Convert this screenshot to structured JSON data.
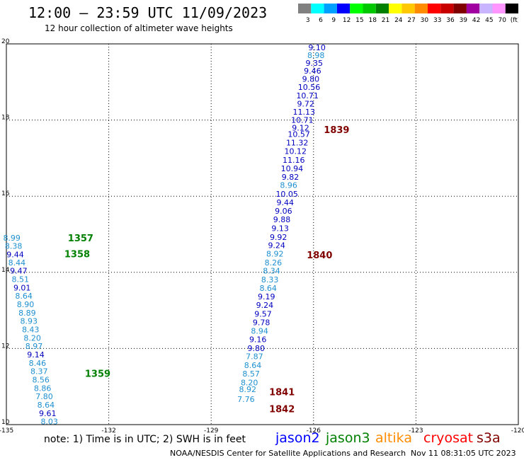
{
  "header": {
    "title": "12:00 – 23:59 UTC 11/09/2023",
    "subtitle": "12 hour collection of altimeter wave heights"
  },
  "colorbar": {
    "labels": [
      "3",
      "6",
      "9",
      "12",
      "15",
      "18",
      "21",
      "24",
      "27",
      "30",
      "33",
      "36",
      "39",
      "42",
      "45",
      "70",
      "(ft)"
    ],
    "colors": [
      "#808080",
      "#00ffff",
      "#00a0ff",
      "#0000ff",
      "#00ff00",
      "#00c800",
      "#008000",
      "#ffff00",
      "#ffc800",
      "#ff8c00",
      "#ff0000",
      "#c80000",
      "#800000",
      "#a000a0",
      "#c8b4ff",
      "#ff96ff",
      "#000000"
    ]
  },
  "colors": {
    "light_blue": "#1e90d0",
    "dark_blue": "#0000c0",
    "green": "#008000",
    "dark_red": "#800000",
    "jason2": "#0000ff",
    "jason3": "#008000",
    "altika": "#ff8c00",
    "cryosat": "#ff0000",
    "s3a": "#800000"
  },
  "chart_data": {
    "type": "scatter",
    "x_ticks": [
      "-135",
      "-132",
      "-129",
      "-126",
      "-123",
      "-120"
    ],
    "y_ticks": [
      "20",
      "18",
      "16",
      "14",
      "12",
      "10"
    ],
    "xlim": [
      -135,
      -120
    ],
    "ylim": [
      10,
      20
    ],
    "grid": true,
    "points": [
      {
        "lon": -125.9,
        "lat": 19.91,
        "v": "9.10",
        "c": "dark_blue"
      },
      {
        "lon": -125.93,
        "lat": 19.7,
        "v": "8.98",
        "c": "light_blue"
      },
      {
        "lon": -125.98,
        "lat": 19.5,
        "v": "9.35",
        "c": "dark_blue"
      },
      {
        "lon": -126.03,
        "lat": 19.29,
        "v": "9.46",
        "c": "dark_blue"
      },
      {
        "lon": -126.08,
        "lat": 19.08,
        "v": "9.80",
        "c": "dark_blue"
      },
      {
        "lon": -126.13,
        "lat": 18.87,
        "v": "10.56",
        "c": "dark_blue"
      },
      {
        "lon": -126.18,
        "lat": 18.64,
        "v": "10.71",
        "c": "dark_blue"
      },
      {
        "lon": -126.23,
        "lat": 18.43,
        "v": "9.72",
        "c": "dark_blue"
      },
      {
        "lon": -126.28,
        "lat": 18.22,
        "v": "11.13",
        "c": "dark_blue"
      },
      {
        "lon": -126.33,
        "lat": 18.0,
        "v": "10.71",
        "c": "dark_blue"
      },
      {
        "lon": -126.38,
        "lat": 17.8,
        "v": "9.12",
        "c": "dark_blue"
      },
      {
        "lon": -126.43,
        "lat": 17.63,
        "v": "10.57",
        "c": "dark_blue"
      },
      {
        "lon": -126.48,
        "lat": 17.41,
        "v": "11.32",
        "c": "dark_blue"
      },
      {
        "lon": -126.53,
        "lat": 17.18,
        "v": "10.12",
        "c": "dark_blue"
      },
      {
        "lon": -126.58,
        "lat": 16.95,
        "v": "11.16",
        "c": "dark_blue"
      },
      {
        "lon": -126.63,
        "lat": 16.73,
        "v": "10.94",
        "c": "dark_blue"
      },
      {
        "lon": -126.68,
        "lat": 16.51,
        "v": "9.82",
        "c": "dark_blue"
      },
      {
        "lon": -126.73,
        "lat": 16.29,
        "v": "8.96",
        "c": "light_blue"
      },
      {
        "lon": -126.78,
        "lat": 16.06,
        "v": "10.05",
        "c": "dark_blue"
      },
      {
        "lon": -126.83,
        "lat": 15.84,
        "v": "9.44",
        "c": "dark_blue"
      },
      {
        "lon": -126.88,
        "lat": 15.61,
        "v": "9.06",
        "c": "dark_blue"
      },
      {
        "lon": -126.93,
        "lat": 15.39,
        "v": "9.88",
        "c": "dark_blue"
      },
      {
        "lon": -126.98,
        "lat": 15.16,
        "v": "9.13",
        "c": "dark_blue"
      },
      {
        "lon": -127.03,
        "lat": 14.93,
        "v": "9.92",
        "c": "dark_blue"
      },
      {
        "lon": -127.08,
        "lat": 14.71,
        "v": "9.24",
        "c": "dark_blue"
      },
      {
        "lon": -127.13,
        "lat": 14.49,
        "v": "8.92",
        "c": "light_blue"
      },
      {
        "lon": -127.18,
        "lat": 14.26,
        "v": "8.26",
        "c": "light_blue"
      },
      {
        "lon": -127.23,
        "lat": 14.04,
        "v": "8.34",
        "c": "light_blue"
      },
      {
        "lon": -127.28,
        "lat": 13.81,
        "v": "8.33",
        "c": "light_blue"
      },
      {
        "lon": -127.33,
        "lat": 13.59,
        "v": "8.64",
        "c": "light_blue"
      },
      {
        "lon": -127.38,
        "lat": 13.36,
        "v": "9.19",
        "c": "dark_blue"
      },
      {
        "lon": -127.43,
        "lat": 13.14,
        "v": "9.24",
        "c": "dark_blue"
      },
      {
        "lon": -127.48,
        "lat": 12.91,
        "v": "9.57",
        "c": "dark_blue"
      },
      {
        "lon": -127.53,
        "lat": 12.69,
        "v": "9.78",
        "c": "dark_blue"
      },
      {
        "lon": -127.58,
        "lat": 12.46,
        "v": "8.94",
        "c": "light_blue"
      },
      {
        "lon": -127.63,
        "lat": 12.24,
        "v": "9.16",
        "c": "dark_blue"
      },
      {
        "lon": -127.68,
        "lat": 12.01,
        "v": "9.80",
        "c": "dark_blue"
      },
      {
        "lon": -127.73,
        "lat": 11.79,
        "v": "7.87",
        "c": "light_blue"
      },
      {
        "lon": -127.78,
        "lat": 11.56,
        "v": "8.64",
        "c": "light_blue"
      },
      {
        "lon": -127.83,
        "lat": 11.34,
        "v": "8.57",
        "c": "light_blue"
      },
      {
        "lon": -127.88,
        "lat": 11.11,
        "v": "8.20",
        "c": "light_blue"
      },
      {
        "lon": -127.93,
        "lat": 10.93,
        "v": "8.92",
        "c": "light_blue"
      },
      {
        "lon": -127.98,
        "lat": 10.67,
        "v": "7.76",
        "c": "light_blue"
      },
      {
        "lon": -134.84,
        "lat": 14.91,
        "v": "8.99",
        "c": "light_blue"
      },
      {
        "lon": -134.79,
        "lat": 14.69,
        "v": "8.38",
        "c": "light_blue"
      },
      {
        "lon": -134.74,
        "lat": 14.47,
        "v": "9.44",
        "c": "dark_blue"
      },
      {
        "lon": -134.69,
        "lat": 14.26,
        "v": "8.44",
        "c": "light_blue"
      },
      {
        "lon": -134.64,
        "lat": 14.04,
        "v": "9.47",
        "c": "dark_blue"
      },
      {
        "lon": -134.59,
        "lat": 13.82,
        "v": "8.51",
        "c": "light_blue"
      },
      {
        "lon": -134.54,
        "lat": 13.6,
        "v": "9.01",
        "c": "dark_blue"
      },
      {
        "lon": -134.49,
        "lat": 13.38,
        "v": "8.64",
        "c": "light_blue"
      },
      {
        "lon": -134.44,
        "lat": 13.16,
        "v": "8.90",
        "c": "light_blue"
      },
      {
        "lon": -134.39,
        "lat": 12.94,
        "v": "8.89",
        "c": "light_blue"
      },
      {
        "lon": -134.34,
        "lat": 12.72,
        "v": "8.93",
        "c": "light_blue"
      },
      {
        "lon": -134.29,
        "lat": 12.5,
        "v": "8.43",
        "c": "light_blue"
      },
      {
        "lon": -134.24,
        "lat": 12.28,
        "v": "8.20",
        "c": "light_blue"
      },
      {
        "lon": -134.19,
        "lat": 12.06,
        "v": "8.97",
        "c": "light_blue"
      },
      {
        "lon": -134.14,
        "lat": 11.84,
        "v": "9.14",
        "c": "dark_blue"
      },
      {
        "lon": -134.09,
        "lat": 11.62,
        "v": "8.46",
        "c": "light_blue"
      },
      {
        "lon": -134.04,
        "lat": 11.4,
        "v": "8.37",
        "c": "light_blue"
      },
      {
        "lon": -133.99,
        "lat": 11.18,
        "v": "8.56",
        "c": "light_blue"
      },
      {
        "lon": -133.94,
        "lat": 10.96,
        "v": "8.86",
        "c": "light_blue"
      },
      {
        "lon": -133.89,
        "lat": 10.74,
        "v": "7.80",
        "c": "light_blue"
      },
      {
        "lon": -133.84,
        "lat": 10.52,
        "v": "8.64",
        "c": "light_blue"
      },
      {
        "lon": -133.79,
        "lat": 10.3,
        "v": "9.61",
        "c": "dark_blue"
      },
      {
        "lon": -133.74,
        "lat": 10.08,
        "v": "8.03",
        "c": "light_blue"
      }
    ],
    "time_labels": [
      {
        "lon": -125.7,
        "lat": 17.75,
        "v": "1839",
        "c": "dark_red"
      },
      {
        "lon": -126.2,
        "lat": 14.46,
        "v": "1840",
        "c": "dark_red"
      },
      {
        "lon": -127.3,
        "lat": 10.86,
        "v": "1841",
        "c": "dark_red"
      },
      {
        "lon": -127.3,
        "lat": 10.42,
        "v": "1842",
        "c": "dark_red"
      },
      {
        "lon": -133.2,
        "lat": 14.91,
        "v": "1357",
        "c": "green"
      },
      {
        "lon": -133.3,
        "lat": 14.49,
        "v": "1358",
        "c": "green"
      },
      {
        "lon": -132.7,
        "lat": 11.35,
        "v": "1359",
        "c": "green"
      }
    ]
  },
  "footer": {
    "note": "note: 1) Time is in UTC; 2) SWH is in feet",
    "satellites": [
      "jason2",
      "jason3",
      "altika",
      "cryosat",
      "s3a"
    ],
    "credit": "NOAA/NESDIS Center for Satellite Applications and Research",
    "timestamp": "Nov 11 08:31:05 UTC 2023"
  }
}
